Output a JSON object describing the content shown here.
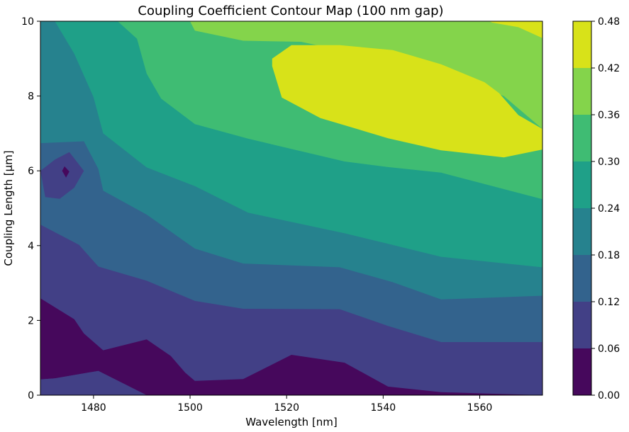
{
  "chart_data": {
    "type": "contourf",
    "title": "Coupling Coefficient Contour Map (100 nm gap)",
    "xlabel": "Wavelength [nm]",
    "ylabel": "Coupling Length [µm]",
    "xlim": [
      1469,
      1573
    ],
    "ylim": [
      0,
      10
    ],
    "x_ticks": [
      1480,
      1500,
      1520,
      1540,
      1560
    ],
    "x_tick_labels": [
      "1480",
      "1500",
      "1520",
      "1540",
      "1560"
    ],
    "y_ticks": [
      0,
      2,
      4,
      6,
      8,
      10
    ],
    "y_tick_labels": [
      "0",
      "2",
      "4",
      "6",
      "8",
      "10"
    ],
    "levels": [
      0.0,
      0.06,
      0.12,
      0.18,
      0.24,
      0.3,
      0.36,
      0.42,
      0.48
    ],
    "colorbar_tick_labels": [
      "0.00",
      "0.06",
      "0.12",
      "0.18",
      "0.24",
      "0.30",
      "0.36",
      "0.42",
      "0.48"
    ],
    "colors": [
      "#46085c",
      "#424086",
      "#33638d",
      "#26828e",
      "#1fa088",
      "#3fbc73",
      "#84d44b",
      "#d8e219"
    ],
    "grid": false,
    "colorbar": "right",
    "region_polygons": [
      [
        [
          1469,
          0
        ],
        [
          1573,
          0
        ],
        [
          1573,
          1.42
        ],
        [
          1552,
          1.42
        ],
        [
          1541,
          1.85
        ],
        [
          1531,
          2.3
        ],
        [
          1511,
          2.31
        ],
        [
          1501,
          2.52
        ],
        [
          1491,
          3.06
        ],
        [
          1481,
          3.44
        ],
        [
          1477,
          4.02
        ],
        [
          1469,
          4.56
        ]
      ],
      [
        [
          1469,
          0
        ],
        [
          1573,
          0
        ],
        [
          1573,
          2.66
        ],
        [
          1552,
          2.56
        ],
        [
          1542,
          3.02
        ],
        [
          1531,
          3.42
        ],
        [
          1511,
          3.52
        ],
        [
          1501,
          3.92
        ],
        [
          1491,
          4.83
        ],
        [
          1482,
          5.47
        ],
        [
          1481,
          6.05
        ],
        [
          1478,
          6.79
        ],
        [
          1469,
          6.74
        ]
      ],
      [
        [
          1469,
          0
        ],
        [
          1573,
          0
        ],
        [
          1573,
          3.42
        ],
        [
          1552,
          3.7
        ],
        [
          1541,
          4.05
        ],
        [
          1532,
          4.33
        ],
        [
          1512,
          4.88
        ],
        [
          1501,
          5.59
        ],
        [
          1491,
          6.09
        ],
        [
          1482,
          7.0
        ],
        [
          1480,
          7.97
        ],
        [
          1476,
          9.13
        ],
        [
          1472,
          10
        ],
        [
          1469,
          10
        ]
      ],
      [
        [
          1469,
          0
        ],
        [
          1573,
          0
        ],
        [
          1573,
          5.24
        ],
        [
          1552,
          5.95
        ],
        [
          1541,
          6.1
        ],
        [
          1532,
          6.25
        ],
        [
          1512,
          6.86
        ],
        [
          1501,
          7.25
        ],
        [
          1494,
          7.93
        ],
        [
          1491,
          8.6
        ],
        [
          1489,
          9.53
        ],
        [
          1485,
          10
        ],
        [
          1469,
          10
        ]
      ],
      [
        [
          1469,
          0
        ],
        [
          1573,
          0
        ],
        [
          1573,
          7.12
        ],
        [
          1565,
          8.0
        ],
        [
          1553,
          8.6
        ],
        [
          1541,
          9.05
        ],
        [
          1532,
          9.2
        ],
        [
          1523,
          9.45
        ],
        [
          1511,
          9.48
        ],
        [
          1501,
          9.75
        ],
        [
          1500,
          10
        ],
        [
          1469,
          10
        ]
      ],
      [
        [
          1469,
          0
        ],
        [
          1573,
          0
        ],
        [
          1573,
          9.55
        ],
        [
          1568,
          9.84
        ],
        [
          1561,
          10
        ],
        [
          1469,
          10
        ]
      ],
      [
        [
          1517,
          8.8
        ],
        [
          1517,
          9.0
        ],
        [
          1521,
          9.36
        ],
        [
          1531,
          9.36
        ],
        [
          1542,
          9.23
        ],
        [
          1552,
          8.85
        ],
        [
          1561,
          8.37
        ],
        [
          1564,
          8.08
        ],
        [
          1568,
          7.49
        ],
        [
          1573,
          7.12
        ],
        [
          1573,
          6.57
        ],
        [
          1565,
          6.36
        ],
        [
          1552,
          6.55
        ],
        [
          1541,
          6.87
        ],
        [
          1533,
          7.18
        ],
        [
          1527,
          7.41
        ],
        [
          1519,
          7.96
        ]
      ],
      [
        [
          1469,
          0
        ],
        [
          1573,
          0
        ],
        [
          1573,
          9.25
        ],
        [
          1562,
          10
        ],
        [
          1469,
          10
        ]
      ]
    ],
    "island_polygons": [
      [
        [
          1469,
          6.0
        ],
        [
          1472,
          6.3
        ],
        [
          1475,
          6.5
        ],
        [
          1478,
          6.0
        ],
        [
          1476,
          5.55
        ],
        [
          1473,
          5.25
        ],
        [
          1470,
          5.3
        ]
      ],
      [
        [
          1474,
          6.12
        ],
        [
          1475,
          5.98
        ],
        [
          1474.3,
          5.82
        ],
        [
          1473.5,
          6.0
        ]
      ]
    ],
    "low_band_polygon": [
      [
        1469,
        0
      ],
      [
        1491,
        0
      ],
      [
        1481,
        0.65
      ],
      [
        1472,
        0.45
      ],
      [
        1469,
        0.42
      ]
    ],
    "lowest_region_polygon": [
      [
        1469,
        0.42
      ],
      [
        1472,
        0.45
      ],
      [
        1481,
        0.65
      ],
      [
        1491,
        0
      ],
      [
        1573,
        0
      ],
      [
        1573,
        0
      ],
      [
        1552,
        0.08
      ],
      [
        1541,
        0.23
      ],
      [
        1532,
        0.87
      ],
      [
        1521,
        1.08
      ],
      [
        1511,
        0.43
      ],
      [
        1501,
        0.38
      ],
      [
        1499,
        0.6
      ],
      [
        1496,
        1.05
      ],
      [
        1491,
        1.49
      ],
      [
        1482,
        1.2
      ],
      [
        1478,
        1.65
      ],
      [
        1476,
        2.03
      ],
      [
        1469,
        2.59
      ]
    ]
  }
}
